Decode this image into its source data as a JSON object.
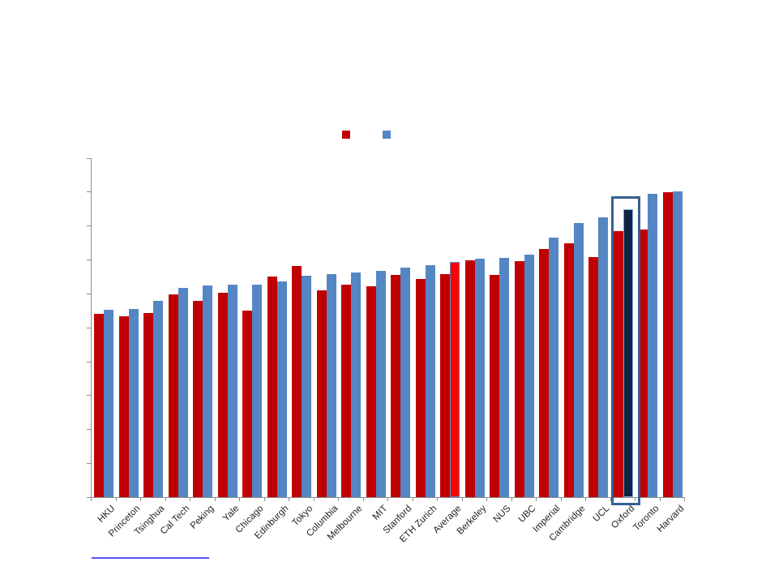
{
  "chart_data": {
    "type": "bar",
    "title": "",
    "categories": [
      "HKU",
      "Princeton",
      "Tsinghua",
      "Cal Tech",
      "Peking",
      "Yale",
      "Chicago",
      "Edinburgh",
      "Tokyo",
      "Columbia",
      "Melbourne",
      "MIT",
      "Stanford",
      "ETH Zurich",
      "Average",
      "Berkeley",
      "NUS",
      "UBC",
      "Imperial",
      "Cambridge",
      "UCL",
      "Oxford",
      "Toronto",
      "Harvard"
    ],
    "series": [
      {
        "name": "red-series",
        "color": "#C00000",
        "values": [
          54.0,
          53.4,
          54.2,
          59.7,
          57.8,
          60.2,
          55.0,
          65.0,
          68.1,
          60.9,
          62.6,
          62.1,
          65.5,
          64.3,
          65.7,
          69.8,
          65.5,
          69.5,
          73.1,
          74.8,
          70.7,
          78.4,
          78.9,
          89.8
        ]
      },
      {
        "name": "blue-series",
        "color": "#5586C4",
        "values": [
          55.3,
          55.4,
          57.8,
          61.6,
          62.4,
          62.6,
          62.7,
          63.6,
          65.2,
          65.7,
          66.2,
          66.7,
          67.6,
          68.3,
          69.3,
          70.3,
          70.5,
          71.4,
          76.5,
          80.8,
          82.4,
          84.8,
          89.4,
          90.1
        ]
      }
    ],
    "bar_overrides": [
      {
        "category": "Average",
        "series_index": 1,
        "fill": "#FF0000",
        "border": "#5586C4"
      },
      {
        "category": "Oxford",
        "series_index": 1,
        "fill": "#0F2440",
        "border": "#7FA7D9"
      }
    ],
    "highlight_box": {
      "category": "Oxford",
      "border_color": "#365F91"
    },
    "legend": {
      "position": "top-center",
      "labels_visible": false,
      "items": [
        {
          "name": "red-series-swatch",
          "swatch_color": "#C00000"
        },
        {
          "name": "blue-series-swatch",
          "swatch_color": "#5586C4"
        }
      ]
    },
    "x_axis": {
      "tick_labels_visible": true,
      "label_rotation_deg": -45
    },
    "y_axis": {
      "tick_count": 11,
      "tick_labels_visible": false,
      "implied_range": [
        0,
        100
      ]
    },
    "grid": false,
    "axis_color": "#8C8C8C"
  },
  "footer": {
    "hyperlink_underline_color": "#5B55F0"
  },
  "background_color": "#FFFFFF"
}
